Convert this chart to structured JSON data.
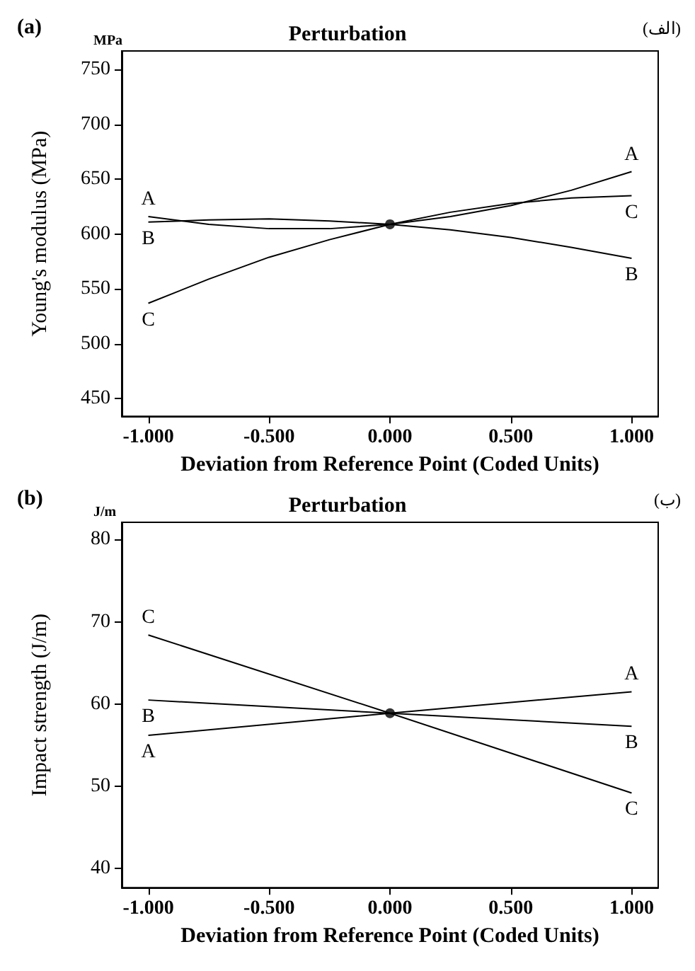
{
  "chart_data": [
    {
      "type": "line",
      "title": "Perturbation",
      "xlabel": "Deviation from Reference Point (Coded Units)",
      "ylabel": "Young's modulus (MPa)",
      "annotations": [
        "(a)",
        "(الف)",
        "MPa"
      ],
      "x": [
        -1,
        -0.75,
        -0.5,
        -0.25,
        0,
        0.25,
        0.5,
        0.75,
        1
      ],
      "series": [
        {
          "name": "A",
          "color": "#000000",
          "values": [
            616,
            609,
            605,
            605,
            609,
            616,
            626,
            640,
            657
          ]
        },
        {
          "name": "B",
          "color": "#000000",
          "values": [
            611,
            613,
            614,
            612,
            609,
            604,
            597,
            588,
            578
          ]
        },
        {
          "name": "C",
          "color": "#000000",
          "values": [
            537,
            559,
            579,
            595,
            609,
            620,
            628,
            633,
            635
          ]
        },
        {
          "type": "scatter",
          "color": "#000000",
          "marker": "circle",
          "x": [
            0
          ],
          "values": [
            609
          ]
        }
      ],
      "xlim": [
        -1.11,
        1.11
      ],
      "xticks": [
        {
          "value": -1,
          "label": "-1.000"
        },
        {
          "value": -0.5,
          "label": "-0.500"
        },
        {
          "value": 0,
          "label": "0.000"
        },
        {
          "value": 0.5,
          "label": "0.500"
        },
        {
          "value": 1,
          "label": "1.000"
        }
      ],
      "ylim": [
        434,
        767
      ],
      "yticks": [
        450,
        500,
        550,
        600,
        650,
        700,
        750
      ],
      "marker": "none",
      "line_style": "solid"
    },
    {
      "type": "line",
      "title": "Perturbation",
      "xlabel": "Deviation from Reference Point (Coded Units)",
      "ylabel": "Impact strength (J/m)",
      "annotations": [
        "(b)",
        "(ب)",
        "J/m"
      ],
      "x": [
        -1,
        0,
        1
      ],
      "series": [
        {
          "name": "A",
          "color": "#000000",
          "values": [
            56.2,
            58.9,
            61.5
          ]
        },
        {
          "name": "B",
          "color": "#000000",
          "values": [
            60.5,
            58.9,
            57.3
          ]
        },
        {
          "name": "C",
          "color": "#000000",
          "values": [
            68.4,
            58.9,
            49.2
          ]
        },
        {
          "type": "scatter",
          "color": "#000000",
          "marker": "circle",
          "x": [
            0
          ],
          "values": [
            58.9
          ]
        }
      ],
      "xlim": [
        -1.11,
        1.11
      ],
      "xticks": [
        {
          "value": -1,
          "label": "-1.000"
        },
        {
          "value": -0.5,
          "label": "-0.500"
        },
        {
          "value": 0,
          "label": "0.000"
        },
        {
          "value": 0.5,
          "label": "0.500"
        },
        {
          "value": 1,
          "label": "1.000"
        }
      ],
      "ylim": [
        37.7,
        82.1
      ],
      "yticks": [
        40,
        50,
        60,
        70,
        80
      ],
      "marker": "none",
      "line_style": "solid"
    }
  ]
}
